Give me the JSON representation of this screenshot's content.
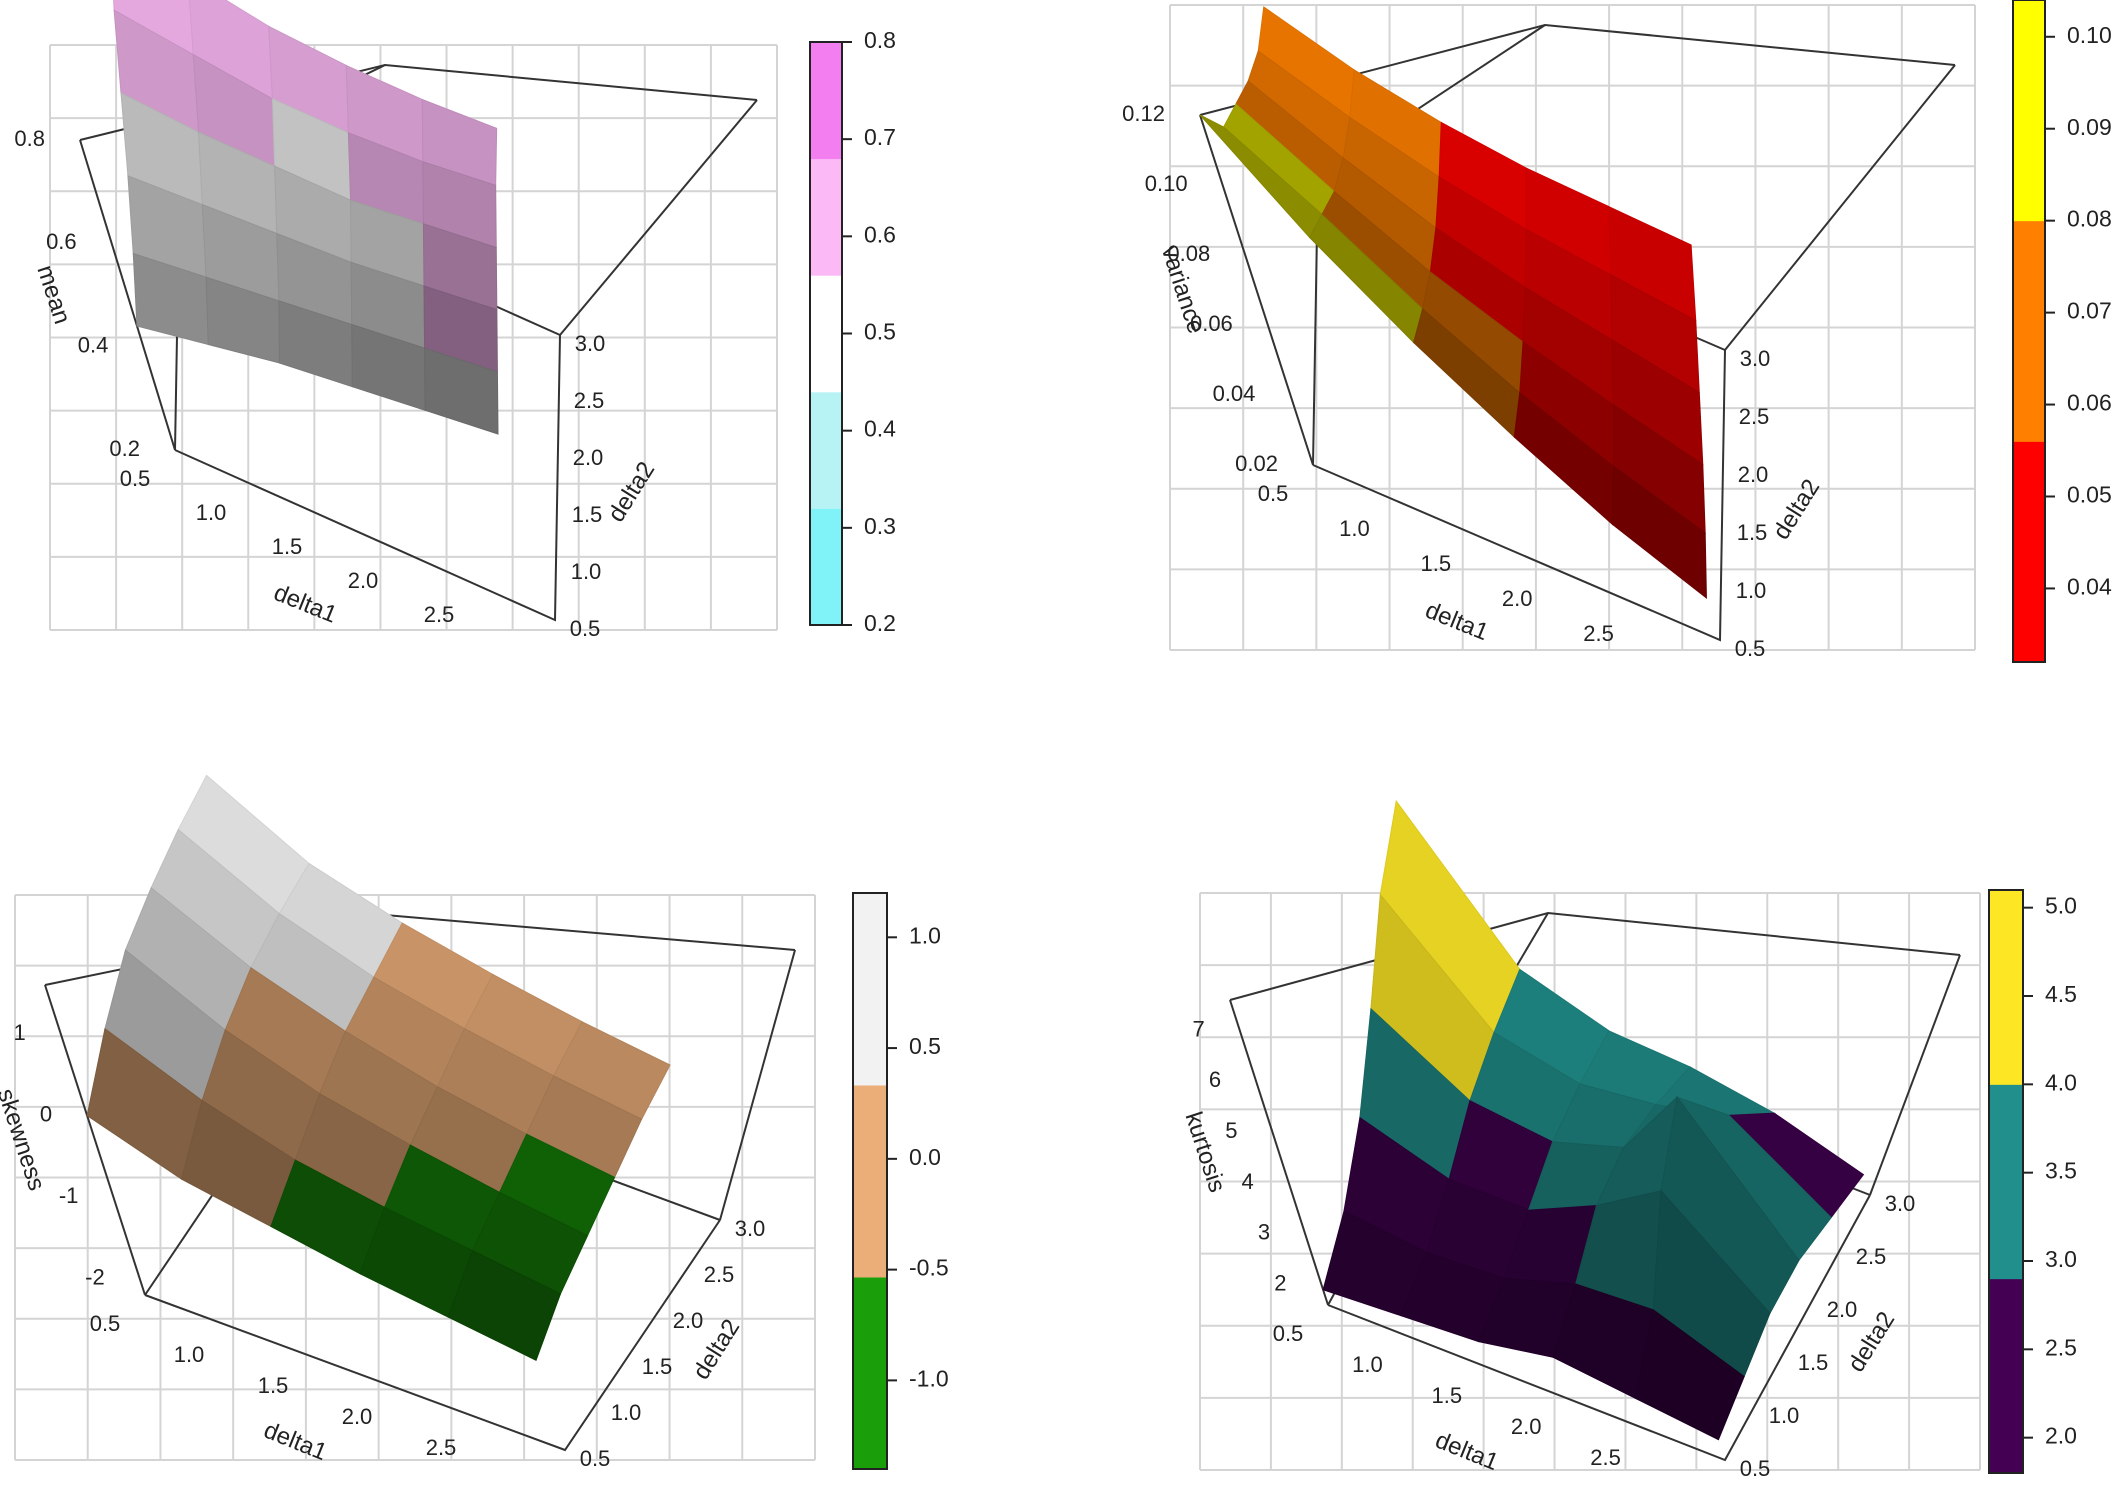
{
  "chart_data": [
    {
      "type": "surface3d",
      "xlabel": "delta1",
      "ylabel": "delta2",
      "zlabel": "mean",
      "x_ticks": [
        "0.5",
        "1.0",
        "1.5",
        "2.0",
        "2.5"
      ],
      "y_ticks": [
        "0.5",
        "1.0",
        "1.5",
        "2.0",
        "2.5",
        "3.0"
      ],
      "z_ticks": [
        "0.2",
        "0.4",
        "0.6",
        "0.8"
      ],
      "colorbar": {
        "ticks": [
          "0.2",
          "0.3",
          "0.4",
          "0.5",
          "0.6",
          "0.7",
          "0.8"
        ],
        "colors": [
          "#7ff3f7",
          "#b7f3f5",
          "#ffffff",
          "#fbb9f5",
          "#f27ef0"
        ]
      },
      "x": [
        0.5,
        1.0,
        1.5,
        2.0,
        2.5,
        3.0
      ],
      "y": [
        0.5,
        1.0,
        1.5,
        2.0,
        2.5,
        3.0
      ],
      "z": [
        [
          0.44,
          0.47,
          0.51,
          0.56,
          0.61,
          0.64
        ],
        [
          0.47,
          0.49,
          0.52,
          0.55,
          0.59,
          0.63
        ],
        [
          0.5,
          0.51,
          0.53,
          0.55,
          0.57,
          0.6
        ],
        [
          0.52,
          0.53,
          0.54,
          0.55,
          0.57,
          0.59
        ],
        [
          0.54,
          0.55,
          0.56,
          0.57,
          0.58,
          0.59
        ],
        [
          0.56,
          0.57,
          0.58,
          0.59,
          0.6,
          0.6
        ]
      ]
    },
    {
      "type": "surface3d",
      "xlabel": "delta1",
      "ylabel": "delta2",
      "zlabel": "variance",
      "x_ticks": [
        "0.5",
        "1.0",
        "1.5",
        "2.0",
        "2.5"
      ],
      "y_ticks": [
        "0.5",
        "1.0",
        "1.5",
        "2.0",
        "2.5",
        "3.0"
      ],
      "z_ticks": [
        "0.02",
        "0.04",
        "0.06",
        "0.08",
        "0.10",
        "0.12"
      ],
      "colorbar": {
        "ticks": [
          "0.04",
          "0.05",
          "0.06",
          "0.07",
          "0.08",
          "0.09",
          "0.10"
        ],
        "colors": [
          "#ff0000",
          "#ff8000",
          "#ffff00"
        ]
      },
      "x": [
        0.5,
        1.0,
        1.5,
        2.0,
        2.5,
        3.0
      ],
      "y": [
        0.5,
        1.0,
        1.5,
        2.0,
        2.5,
        3.0
      ],
      "z": [
        [
          0.12,
          0.1,
          0.09,
          0.08,
          0.072,
          0.068
        ],
        [
          0.095,
          0.085,
          0.075,
          0.068,
          0.063,
          0.06
        ],
        [
          0.075,
          0.068,
          0.062,
          0.058,
          0.056,
          0.055
        ],
        [
          0.058,
          0.054,
          0.052,
          0.051,
          0.051,
          0.052
        ],
        [
          0.043,
          0.043,
          0.044,
          0.046,
          0.048,
          0.051
        ],
        [
          0.032,
          0.034,
          0.037,
          0.041,
          0.045,
          0.05
        ]
      ]
    },
    {
      "type": "surface3d",
      "xlabel": "delta1",
      "ylabel": "delta2",
      "zlabel": "skewness",
      "x_ticks": [
        "0.5",
        "1.0",
        "1.5",
        "2.0",
        "2.5"
      ],
      "y_ticks": [
        "0.5",
        "1.0",
        "1.5",
        "2.0",
        "2.5",
        "3.0"
      ],
      "z_ticks": [
        "-2",
        "-1",
        "0",
        "1"
      ],
      "colorbar": {
        "ticks": [
          "-1.0",
          "-0.5",
          "0.0",
          "0.5",
          "1.0"
        ],
        "colors": [
          "#1a9e0a",
          "#ebae79",
          "#f2f2f2"
        ]
      },
      "x": [
        0.5,
        1.0,
        1.5,
        2.0,
        2.5,
        3.0
      ],
      "y": [
        0.5,
        1.0,
        1.5,
        2.0,
        2.5,
        3.0
      ],
      "z": [
        [
          0.0,
          0.5,
          0.9,
          1.1,
          1.25,
          1.35
        ],
        [
          -0.4,
          0.0,
          0.3,
          0.5,
          0.6,
          0.65
        ],
        [
          -0.6,
          -0.35,
          -0.1,
          0.1,
          0.2,
          0.3
        ],
        [
          -0.8,
          -0.55,
          -0.35,
          -0.2,
          -0.05,
          0.05
        ],
        [
          -0.95,
          -0.7,
          -0.55,
          -0.4,
          -0.25,
          -0.15
        ],
        [
          -1.1,
          -0.85,
          -0.7,
          -0.55,
          -0.4,
          -0.3
        ]
      ]
    },
    {
      "type": "surface3d",
      "xlabel": "delta1",
      "ylabel": "delta2",
      "zlabel": "kurtosis",
      "x_ticks": [
        "0.5",
        "1.0",
        "1.5",
        "2.0",
        "2.5"
      ],
      "y_ticks": [
        "0.5",
        "1.0",
        "1.5",
        "2.0",
        "2.5",
        "3.0"
      ],
      "z_ticks": [
        "2",
        "3",
        "4",
        "5",
        "6",
        "7"
      ],
      "colorbar": {
        "ticks": [
          "2.0",
          "2.5",
          "3.0",
          "3.5",
          "4.0",
          "4.5",
          "5.0"
        ],
        "colors": [
          "#440154",
          "#21908c",
          "#fde725"
        ]
      },
      "x": [
        0.5,
        1.0,
        1.5,
        2.0,
        2.5,
        3.0
      ],
      "y": [
        0.5,
        1.0,
        1.5,
        2.0,
        2.5,
        3.0
      ],
      "z": [
        [
          1.9,
          2.4,
          3.2,
          4.3,
          5.5,
          6.3
        ],
        [
          2.0,
          2.2,
          2.6,
          3.1,
          3.4,
          3.6
        ],
        [
          2.1,
          2.3,
          2.6,
          2.9,
          3.0,
          3.0
        ],
        [
          2.4,
          2.8,
          3.3,
          3.4,
          3.2,
          2.9
        ],
        [
          2.2,
          2.9,
          4.2,
          5.0,
          3.6,
          2.6
        ],
        [
          2.0,
          2.2,
          2.4,
          2.4,
          2.2,
          2.0
        ]
      ]
    }
  ]
}
